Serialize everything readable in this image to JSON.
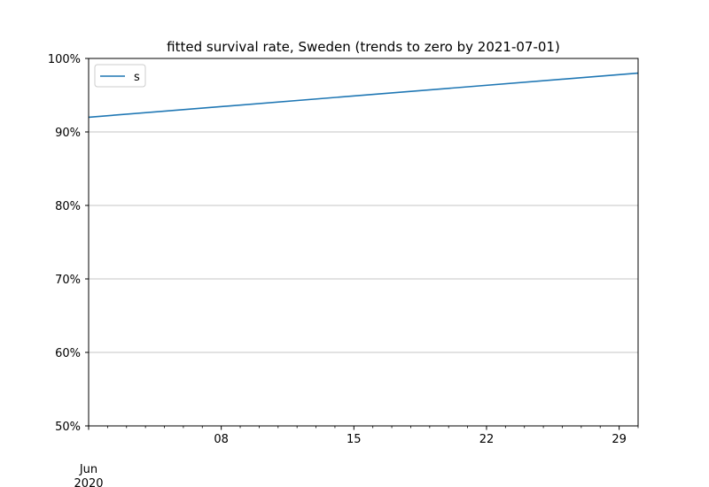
{
  "chart_data": {
    "type": "line",
    "title": "fitted survival rate, Sweden (trends to zero by 2021-07-01)",
    "xlabel": "",
    "ylabel": "",
    "x_range": [
      "2020-06-01",
      "2020-06-30"
    ],
    "ylim": [
      0.5,
      1.0
    ],
    "y_ticks": [
      {
        "value": 0.5,
        "label": "50%"
      },
      {
        "value": 0.6,
        "label": "60%"
      },
      {
        "value": 0.7,
        "label": "70%"
      },
      {
        "value": 0.8,
        "label": "80%"
      },
      {
        "value": 0.9,
        "label": "90%"
      },
      {
        "value": 1.0,
        "label": "100%"
      }
    ],
    "x_ticks": [
      {
        "value": "2020-06-01",
        "label": "Jun",
        "label2": "2020"
      },
      {
        "value": "2020-06-08",
        "label": "08"
      },
      {
        "value": "2020-06-15",
        "label": "15"
      },
      {
        "value": "2020-06-22",
        "label": "22"
      },
      {
        "value": "2020-06-29",
        "label": "29"
      }
    ],
    "grid": "horizontal",
    "legend": "top-left",
    "series": [
      {
        "name": "s",
        "color": "#1f77b4",
        "points": [
          {
            "x": "2020-06-01",
            "y": 0.92
          },
          {
            "x": "2020-06-30",
            "y": 0.98
          }
        ]
      }
    ]
  }
}
